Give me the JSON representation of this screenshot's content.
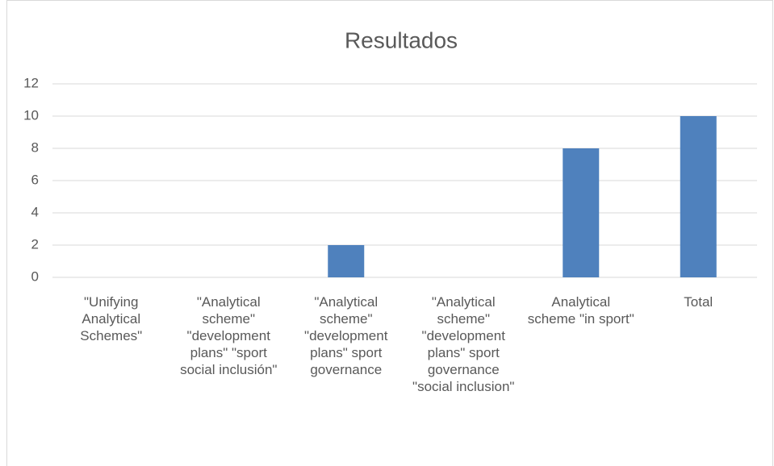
{
  "chart_data": {
    "type": "bar",
    "title": "Resultados",
    "categories": [
      "\"Unifying Analytical Schemes\"",
      "\"Analytical scheme\" \"development plans\" \"sport social inclusión\"",
      "\"Analytical scheme\" \"development plans\" sport governance",
      "\"Analytical scheme\" \"development plans\" sport governance \"social inclusion\"",
      "Analytical scheme \"in sport\"",
      "Total"
    ],
    "values": [
      0,
      0,
      2,
      0,
      8,
      10
    ],
    "color": "#4f81bd",
    "ylim": [
      0,
      12
    ],
    "yticks": [
      0,
      2,
      4,
      6,
      8,
      10,
      12
    ],
    "grid": true
  }
}
